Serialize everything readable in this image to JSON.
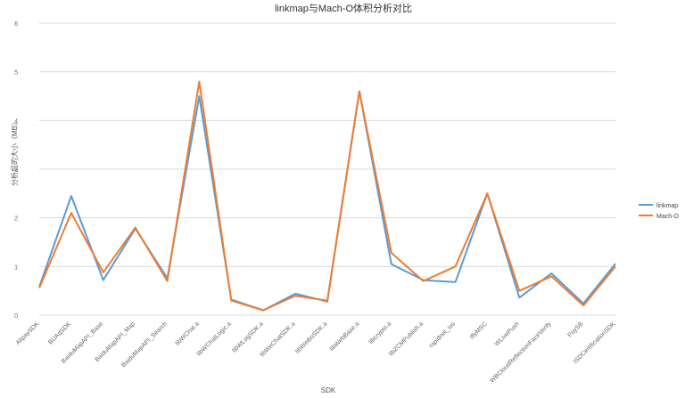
{
  "chart_data": {
    "type": "line",
    "title": "linkmap与Mach-O体积分析对比",
    "xlabel": "SDK",
    "ylabel": "分析后的大小（MB）",
    "ylim": [
      0,
      6
    ],
    "yticks": [
      "0",
      "1",
      "2",
      "3",
      "4",
      "5",
      "6"
    ],
    "grid": true,
    "legend_position": "right",
    "categories": [
      "AlipaySDK",
      "BUAdSDK",
      "BaiduMapAPI_Base",
      "BaiduMapAPI_Map",
      "BaiduMapAPI_Search",
      "libWChat.a",
      "libWChatLogic.a",
      "libWLogSDK.a",
      "libWeChatSDK.a",
      "libWeiboSDK.a",
      "libWebBase.a",
      "libcrypto.a",
      "libZCMPublish.a",
      "rapidnet_ios",
      "iflyMSC",
      "WLivePush",
      "WBCloudReflectionFaceVerify",
      "PaySB",
      "ISDCertificationSDK"
    ],
    "series": [
      {
        "name": "linkmap",
        "color": "#5b9bd5",
        "values": [
          0.58,
          2.45,
          0.72,
          1.78,
          0.76,
          4.5,
          0.32,
          0.1,
          0.44,
          0.28,
          4.6,
          1.05,
          0.72,
          0.68,
          2.5,
          0.36,
          0.86,
          0.24,
          1.06
        ]
      },
      {
        "name": "Mach-O",
        "color": "#ed7d31",
        "values": [
          0.56,
          2.1,
          0.88,
          1.8,
          0.7,
          4.8,
          0.3,
          0.1,
          0.4,
          0.3,
          4.6,
          1.28,
          0.7,
          1.0,
          2.5,
          0.5,
          0.8,
          0.2,
          1.0
        ]
      }
    ]
  }
}
